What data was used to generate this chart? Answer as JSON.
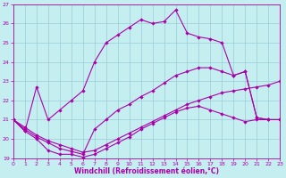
{
  "bg_color": "#c5eef0",
  "grid_color": "#9accd8",
  "line_color": "#aa00aa",
  "xlabel": "Windchill (Refroidissement éolien,°C)",
  "xlim": [
    0,
    23
  ],
  "ylim": [
    19,
    27
  ],
  "xticks": [
    0,
    1,
    2,
    3,
    4,
    5,
    6,
    7,
    8,
    9,
    10,
    11,
    12,
    13,
    14,
    15,
    16,
    17,
    18,
    19,
    20,
    21,
    22,
    23
  ],
  "yticks": [
    19,
    20,
    21,
    22,
    23,
    24,
    25,
    26,
    27
  ],
  "curve1_x": [
    0,
    1,
    2,
    3,
    4,
    5,
    6,
    7,
    8,
    9,
    10,
    11,
    12,
    13,
    14,
    15,
    16,
    17,
    18,
    19,
    20,
    21,
    22,
    23
  ],
  "curve1_y": [
    21.0,
    20.4,
    20.0,
    19.4,
    19.2,
    19.2,
    19.05,
    19.2,
    19.5,
    19.8,
    20.1,
    20.5,
    20.8,
    21.1,
    21.4,
    21.6,
    21.7,
    21.5,
    21.3,
    21.1,
    20.9,
    21.0,
    21.0,
    21.0
  ],
  "curve2_x": [
    0,
    1,
    2,
    3,
    4,
    5,
    6,
    7,
    8,
    9,
    10,
    11,
    12,
    13,
    14,
    15,
    16,
    17,
    18,
    19,
    20,
    21,
    22,
    23
  ],
  "curve2_y": [
    21.0,
    20.6,
    20.2,
    19.9,
    19.7,
    19.5,
    19.3,
    19.4,
    19.7,
    20.0,
    20.3,
    20.6,
    20.9,
    21.2,
    21.5,
    21.8,
    22.0,
    22.2,
    22.4,
    22.5,
    22.6,
    22.7,
    22.8,
    23.0
  ],
  "curve3_x": [
    0,
    1,
    2,
    3,
    4,
    5,
    6,
    7,
    8,
    9,
    10,
    11,
    12,
    13,
    14,
    15,
    16,
    17,
    18,
    19,
    20,
    21,
    22,
    23
  ],
  "curve3_y": [
    21.0,
    20.5,
    20.1,
    19.8,
    19.5,
    19.35,
    19.2,
    20.5,
    21.0,
    21.5,
    21.8,
    22.2,
    22.5,
    22.9,
    23.3,
    23.5,
    23.7,
    23.7,
    23.5,
    23.3,
    23.5,
    21.1,
    21.0,
    21.0
  ],
  "curve4_x": [
    0,
    1,
    2,
    3,
    4,
    5,
    6,
    7,
    8,
    9,
    10,
    11,
    12,
    13,
    14,
    15,
    16,
    17,
    18,
    19,
    20,
    21,
    22,
    23
  ],
  "curve4_y": [
    21.0,
    20.4,
    22.7,
    21.0,
    21.5,
    22.0,
    22.5,
    24.0,
    25.0,
    25.4,
    25.8,
    26.2,
    26.0,
    26.1,
    26.7,
    25.5,
    25.3,
    25.2,
    25.0,
    23.3,
    23.5,
    21.1,
    21.0,
    21.0
  ]
}
